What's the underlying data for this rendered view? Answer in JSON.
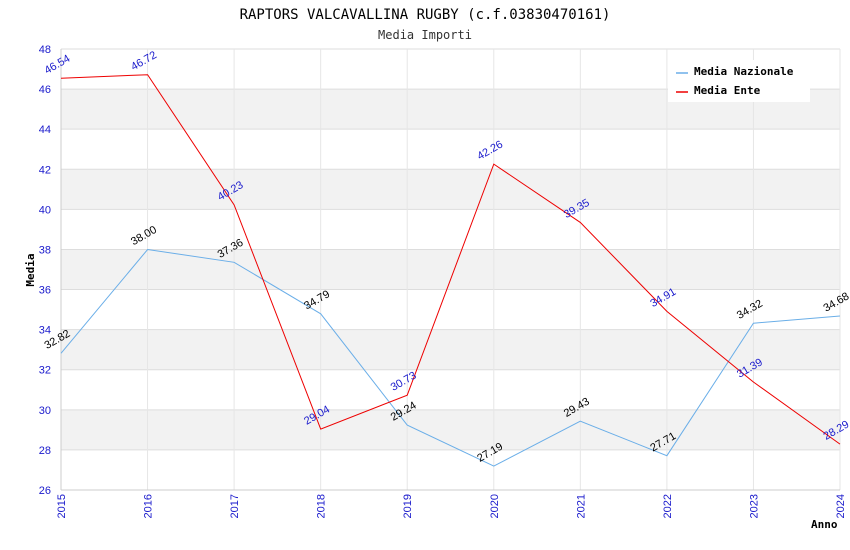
{
  "chart_data": {
    "type": "line",
    "title": "RAPTORS VALCAVALLINA RUGBY (c.f.03830470161)",
    "subtitle": "Media Importi",
    "xlabel": "Anno",
    "ylabel": "Media",
    "x": [
      "2015",
      "2016",
      "2017",
      "2018",
      "2019",
      "2020",
      "2021",
      "2022",
      "2023",
      "2024"
    ],
    "ylim": [
      26,
      48
    ],
    "yticks": [
      26,
      28,
      30,
      32,
      34,
      36,
      38,
      40,
      42,
      44,
      46,
      48
    ],
    "grid": true,
    "legend_position": "top-right",
    "series": [
      {
        "name": "Media Nazionale",
        "color": "#6aaee8",
        "values": [
          32.82,
          38.0,
          37.36,
          34.79,
          29.24,
          27.19,
          29.43,
          27.71,
          34.32,
          34.68
        ],
        "labels": [
          "32.82",
          "38.00",
          "37.36",
          "34.79",
          "29.24",
          "27.19",
          "29.43",
          "27.71",
          "34.32",
          "34.68"
        ]
      },
      {
        "name": "Media Ente",
        "color": "#ee0000",
        "values": [
          46.54,
          46.72,
          40.23,
          29.04,
          30.73,
          42.26,
          39.35,
          34.91,
          31.39,
          28.29
        ],
        "labels": [
          "46.54",
          "46.72",
          "40.23",
          "29.04",
          "30.73",
          "42.26",
          "39.35",
          "34.91",
          "31.39",
          "28.29"
        ]
      }
    ]
  }
}
